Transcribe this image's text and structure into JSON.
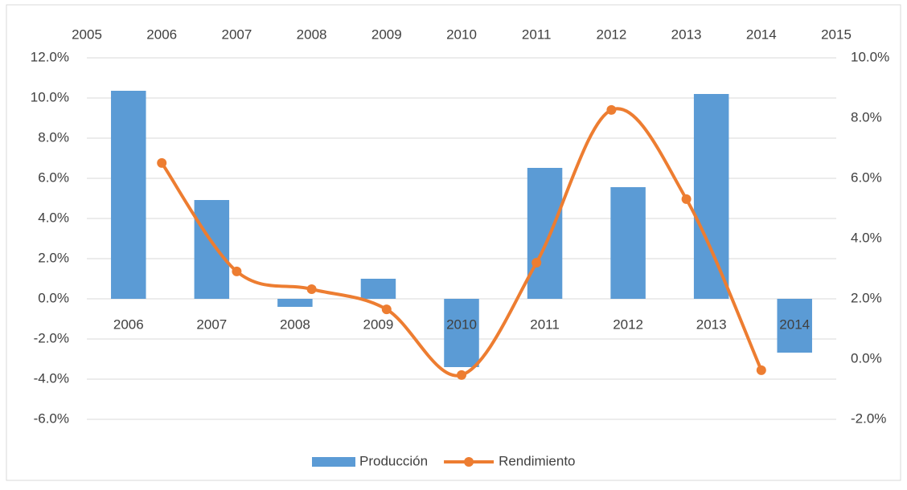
{
  "chart_data": {
    "type": "bar_line",
    "categories": [
      "2006",
      "2007",
      "2008",
      "2009",
      "2010",
      "2011",
      "2012",
      "2013",
      "2014"
    ],
    "series": [
      {
        "name": "Producción",
        "type": "bar",
        "color": "#5b9bd5",
        "values": [
          10.36,
          4.92,
          -0.4,
          1.0,
          -3.4,
          6.52,
          5.56,
          10.2,
          -2.68
        ]
      },
      {
        "name": "Rendimiento",
        "type": "line",
        "axis": "y2",
        "color": "#ed7d31",
        "x": [
          2006,
          2007,
          2008,
          2009,
          2010,
          2011,
          2012,
          2013,
          2014
        ],
        "values": [
          6.51,
          2.91,
          2.32,
          1.65,
          -0.53,
          3.2,
          8.27,
          5.31,
          -0.37
        ]
      }
    ],
    "ylim": [
      -6,
      12
    ],
    "yticks": [
      {
        "value": -6,
        "label": "-6.0%"
      },
      {
        "value": -4,
        "label": "-4.0%"
      },
      {
        "value": -2,
        "label": "-2.0%"
      },
      {
        "value": 0,
        "label": "0.0%"
      },
      {
        "value": 2,
        "label": "2.0%"
      },
      {
        "value": 4,
        "label": "4.0%"
      },
      {
        "value": 6,
        "label": "6.0%"
      },
      {
        "value": 8,
        "label": "8.0%"
      },
      {
        "value": 10,
        "label": "10.0%"
      },
      {
        "value": 12,
        "label": "12.0%"
      }
    ],
    "y2lim": [
      -2,
      10
    ],
    "y2ticks": [
      {
        "value": -2,
        "label": "-2.0%"
      },
      {
        "value": 0,
        "label": "0.0%"
      },
      {
        "value": 2,
        "label": "2.0%"
      },
      {
        "value": 4,
        "label": "4.0%"
      },
      {
        "value": 6,
        "label": "6.0%"
      },
      {
        "value": 8,
        "label": "8.0%"
      },
      {
        "value": 10,
        "label": "10.0%"
      }
    ],
    "x2lim": [
      2005,
      2015
    ],
    "x2ticks": [
      2005,
      2006,
      2007,
      2008,
      2009,
      2010,
      2011,
      2012,
      2013,
      2014,
      2015
    ],
    "grid": true,
    "legend": "bottom"
  }
}
